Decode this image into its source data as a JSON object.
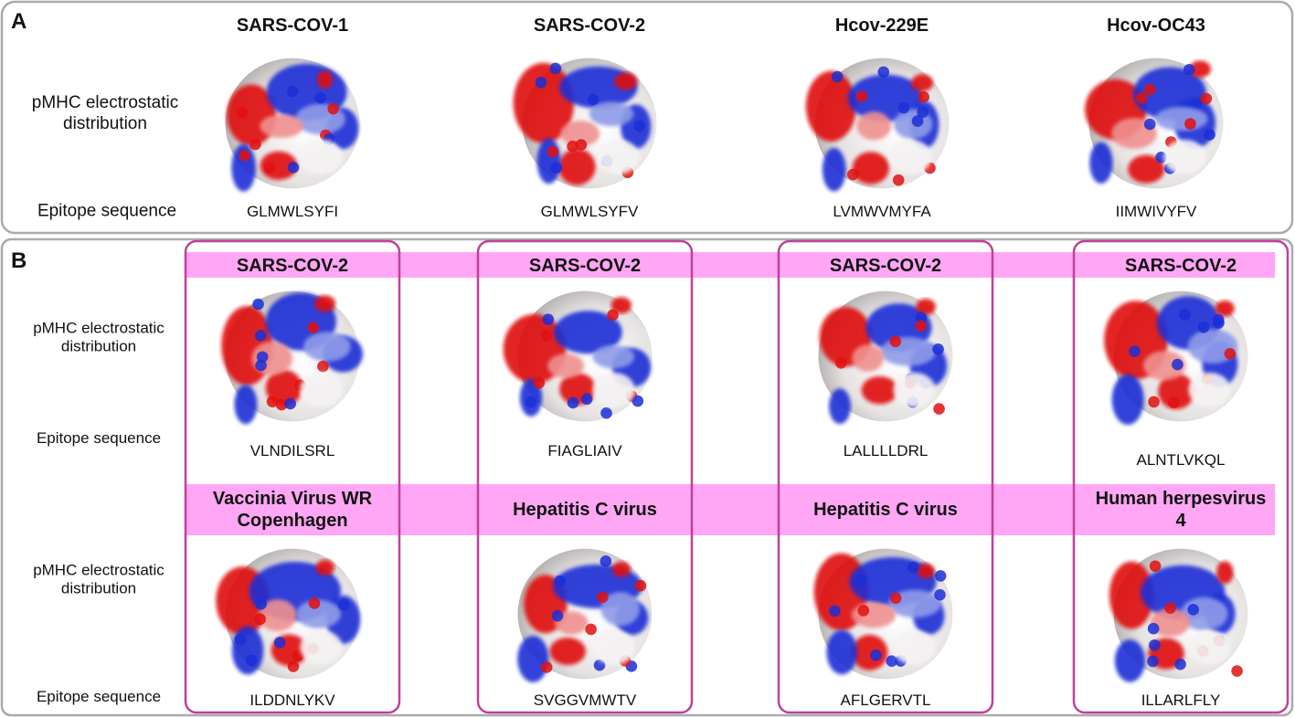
{
  "panel_a": {
    "label": "A",
    "row_labels": {
      "distribution": "pMHC electrostatic distribution",
      "sequence": "Epitope sequence"
    },
    "columns": [
      {
        "title": "SARS-COV-1",
        "sequence": "GLMWLSYFI"
      },
      {
        "title": "SARS-COV-2",
        "sequence": "GLMWLSYFV"
      },
      {
        "title": "Hcov-229E",
        "sequence": "LVMWVMYFA"
      },
      {
        "title": "Hcov-OC43",
        "sequence": "IIMWIVYFV"
      }
    ]
  },
  "panel_b": {
    "label": "B",
    "rows": [
      {
        "distribution": "pMHC electrostatic distribution",
        "sequence": "Epitope sequence"
      },
      {
        "distribution": "pMHC electrostatic distribution",
        "sequence": "Epitope sequence"
      }
    ],
    "columns": [
      {
        "top": {
          "title": "SARS-COV-2",
          "sequence": "VLNDILSRL"
        },
        "bottom": {
          "title": "Vaccinia Virus WR Copenhagen",
          "sequence": "ILDDNLYKV"
        }
      },
      {
        "top": {
          "title": "SARS-COV-2",
          "sequence": "FIAGLIAIV"
        },
        "bottom": {
          "title": "Hepatitis C virus",
          "sequence": "SVGGVMWTV"
        }
      },
      {
        "top": {
          "title": "SARS-COV-2",
          "sequence": "LALLLLDRL"
        },
        "bottom": {
          "title": "Hepatitis C virus",
          "sequence": "AFLGERVTL"
        }
      },
      {
        "top": {
          "title": "SARS-COV-2",
          "sequence": "ALNTLVKQL"
        },
        "bottom": {
          "title": "Human herpesvirus 4",
          "sequence": "ILLARLFLY"
        }
      }
    ]
  }
}
